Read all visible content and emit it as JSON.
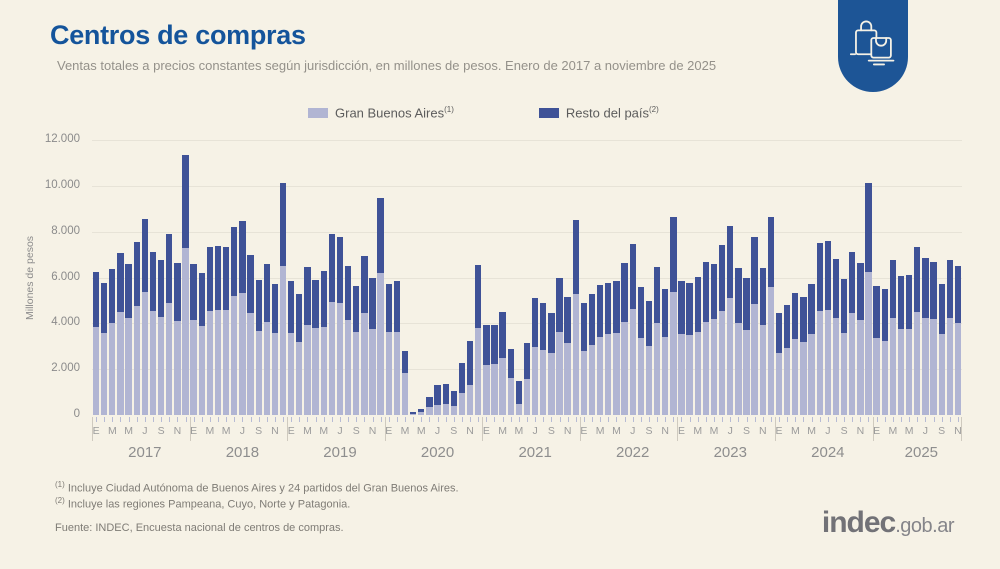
{
  "header": {
    "title": "Centros de compras",
    "subtitle": "Ventas totales a precios constantes según jurisdicción, en millones de pesos. Enero de 2017 a noviembre de 2025"
  },
  "legend": [
    {
      "label": "Gran Buenos Aires",
      "sup": "(1)",
      "color": "#b1b5d3"
    },
    {
      "label": "Resto del país",
      "sup": "(2)",
      "color": "#3f5297"
    }
  ],
  "chart_data": {
    "type": "bar",
    "stacked": true,
    "title": "Centros de compras",
    "xlabel": "",
    "ylabel": "Millones de pesos",
    "ylim": [
      0,
      12000
    ],
    "yticks": [
      "0",
      "2.000",
      "4.000",
      "6.000",
      "8.000",
      "10.000",
      "12.000"
    ],
    "grid": true,
    "legend_position": "top",
    "month_letters": [
      "E",
      "M",
      "M",
      "J",
      "S",
      "N"
    ],
    "series_names": [
      "Gran Buenos Aires",
      "Resto del país"
    ],
    "colors": {
      "gba": "#b1b5d3",
      "resto": "#3f5297"
    },
    "note": "total = Gran Buenos Aires + Resto del país; values in millions of constant pesos",
    "years": [
      {
        "year": "2017",
        "gba": [
          3855,
          3590,
          4000,
          4510,
          4220,
          4770,
          5380,
          4555,
          4290,
          4875,
          4100,
          7275
        ],
        "total": [
          6255,
          5745,
          6360,
          7055,
          6590,
          7565,
          8550,
          7125,
          6765,
          7885,
          6620,
          11345
        ]
      },
      {
        "year": "2018",
        "gba": [
          4145,
          3885,
          4555,
          4580,
          4580,
          5205,
          5340,
          4435,
          3680,
          4075,
          3595,
          6500
        ],
        "total": [
          6590,
          6210,
          7315,
          7375,
          7345,
          8220,
          8465,
          6980,
          5890,
          6575,
          5715,
          10140
        ]
      },
      {
        "year": "2019",
        "gba": [
          3590,
          3200,
          3925,
          3810,
          3855,
          4915,
          4875,
          4145,
          3635,
          4435,
          3740,
          6180
        ],
        "total": [
          5860,
          5280,
          6470,
          5890,
          6285,
          7885,
          7755,
          6500,
          5645,
          6950,
          5965,
          9485
        ]
      },
      {
        "year": "2020",
        "gba": [
          3605,
          3605,
          1820,
          35,
          115,
          335,
          435,
          480,
          400,
          945,
          1300,
          3800
        ],
        "total": [
          5715,
          5860,
          2795,
          115,
          260,
          770,
          1310,
          1355,
          1060,
          2255,
          3220,
          6550
        ]
      },
      {
        "year": "2021",
        "gba": [
          2180,
          2225,
          2470,
          1600,
          465,
          1570,
          2980,
          2840,
          2690,
          3610,
          3155,
          5280
        ],
        "total": [
          3925,
          3925,
          4510,
          2880,
          1485,
          3125,
          5090,
          4870,
          4435,
          5965,
          5165,
          8510
        ]
      },
      {
        "year": "2022",
        "gba": [
          2805,
          3055,
          3420,
          3535,
          3565,
          4075,
          4610,
          3345,
          3010,
          4030,
          3390,
          5380
        ],
        "total": [
          4875,
          5280,
          5675,
          5775,
          5860,
          6645,
          7460,
          5570,
          4975,
          6470,
          5500,
          8625
        ]
      },
      {
        "year": "2023",
        "gba": [
          3520,
          3490,
          3635,
          4075,
          4190,
          4540,
          5090,
          4030,
          3710,
          4845,
          3925,
          5570
        ],
        "total": [
          5860,
          5745,
          6035,
          6690,
          6590,
          7420,
          8245,
          6400,
          5995,
          7755,
          6400,
          8625
        ]
      },
      {
        "year": "2024",
        "gba": [
          2720,
          2910,
          3315,
          3200,
          3535,
          4540,
          4580,
          4220,
          3595,
          4435,
          4145,
          6255
        ],
        "total": [
          4465,
          4800,
          5310,
          5135,
          5715,
          7490,
          7595,
          6795,
          5920,
          7125,
          6620,
          10110
        ]
      },
      {
        "year": "2025",
        "gba": [
          3345,
          3245,
          4220,
          3740,
          3740,
          4480,
          4245,
          4175,
          3520,
          4245,
          4030
        ],
        "total": [
          5645,
          5500,
          6765,
          6080,
          6110,
          7315,
          6865,
          6690,
          5715,
          6765,
          6500
        ]
      }
    ]
  },
  "footnotes": [
    {
      "sup": "(1)",
      "text": " Incluye Ciudad Autónoma de Buenos Aires y 24 partidos del Gran Buenos Aires."
    },
    {
      "sup": "(2)",
      "text": " Incluye las regiones Pampeana, Cuyo, Norte y Patagonia."
    }
  ],
  "source": "Fuente: INDEC, Encuesta nacional de centros de compras.",
  "logo": {
    "main": "indec",
    "suffix": ".gob.ar"
  }
}
